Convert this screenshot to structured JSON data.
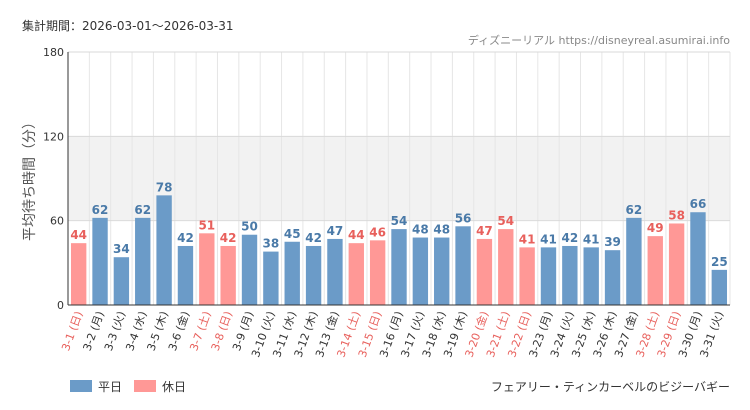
{
  "header": {
    "period_label": "集計期間：2026-03-01～2026-03-31",
    "source_label": "ディズニーリアル https://disneyreal.asumirai.info",
    "attraction_name": "フェアリー・ティンカーベルのビジーバギー"
  },
  "legend": {
    "weekday_label": "平日",
    "holiday_label": "休日"
  },
  "colors": {
    "weekday": "#6b9bc8",
    "holiday": "#ff9896",
    "weekday_text": "#4a7aa8",
    "holiday_text": "#e8605c",
    "band": "#f2f2f2"
  },
  "chart_data": {
    "type": "bar",
    "ylabel": "平均待ち時間（分）",
    "xlabel": "",
    "ylim": [
      0,
      180
    ],
    "yticks": [
      0,
      60,
      120,
      180
    ],
    "grid": true,
    "legend_position": "bottom-left",
    "categories": [
      "3-1 (日)",
      "3-2 (月)",
      "3-3 (火)",
      "3-4 (水)",
      "3-5 (木)",
      "3-6 (金)",
      "3-7 (土)",
      "3-8 (日)",
      "3-9 (月)",
      "3-10 (火)",
      "3-11 (水)",
      "3-12 (木)",
      "3-13 (金)",
      "3-14 (土)",
      "3-15 (日)",
      "3-16 (月)",
      "3-17 (火)",
      "3-18 (水)",
      "3-19 (木)",
      "3-20 (金)",
      "3-21 (土)",
      "3-22 (日)",
      "3-23 (月)",
      "3-24 (火)",
      "3-25 (水)",
      "3-26 (木)",
      "3-27 (金)",
      "3-28 (土)",
      "3-29 (日)",
      "3-30 (月)",
      "3-31 (火)"
    ],
    "values": [
      44,
      62,
      34,
      62,
      78,
      42,
      51,
      42,
      50,
      38,
      45,
      42,
      47,
      44,
      46,
      54,
      48,
      48,
      56,
      47,
      54,
      41,
      41,
      42,
      41,
      39,
      62,
      49,
      58,
      66,
      25
    ],
    "day_type": [
      "holiday",
      "weekday",
      "weekday",
      "weekday",
      "weekday",
      "weekday",
      "holiday",
      "holiday",
      "weekday",
      "weekday",
      "weekday",
      "weekday",
      "weekday",
      "holiday",
      "holiday",
      "weekday",
      "weekday",
      "weekday",
      "weekday",
      "holiday",
      "holiday",
      "holiday",
      "weekday",
      "weekday",
      "weekday",
      "weekday",
      "weekday",
      "holiday",
      "holiday",
      "weekday",
      "weekday"
    ]
  }
}
